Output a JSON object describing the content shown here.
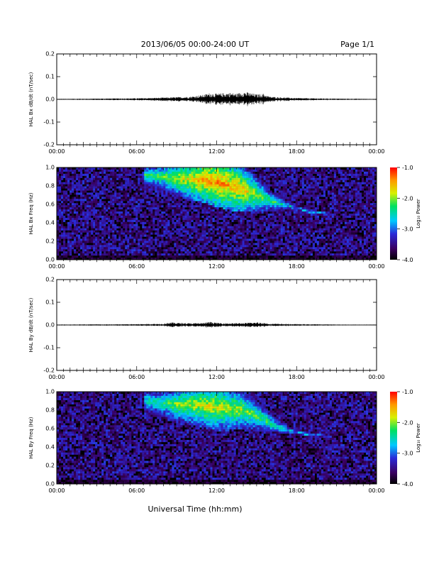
{
  "header": {
    "title": "2013/06/05  00:00-24:00 UT",
    "page": "Page 1/1"
  },
  "xlabel": "Universal Time (hh:mm)",
  "x_ticks": [
    "00:00",
    "06:00",
    "12:00",
    "18:00",
    "00:00"
  ],
  "colorbar": {
    "label": "Log₁₀ Power",
    "ticks": [
      "-1.0",
      "-2.0",
      "-3.0",
      "-4.0"
    ],
    "range": [
      -4.0,
      -1.0
    ]
  },
  "panels": {
    "bx_wave": {
      "ylabel": "HAL Bx dB/dt (nT/sec)",
      "y_ticks": [
        "0.2",
        "0.1",
        "0.0",
        "-0.1",
        "-0.2"
      ]
    },
    "bx_spec": {
      "ylabel": "HAL Bx Freq (Hz)",
      "y_ticks": [
        "1.0",
        "0.8",
        "0.6",
        "0.4",
        "0.2",
        "0.0"
      ]
    },
    "by_wave": {
      "ylabel": "HAL By dB/dt (nT/sec)",
      "y_ticks": [
        "0.2",
        "0.1",
        "0.0",
        "-0.1",
        "-0.2"
      ]
    },
    "by_spec": {
      "ylabel": "HAL By Freq (Hz)",
      "y_ticks": [
        "1.0",
        "0.8",
        "0.6",
        "0.4",
        "0.2",
        "0.0"
      ]
    }
  },
  "chart_data": [
    {
      "type": "line",
      "ylabel": "HAL Bx dB/dt (nT/sec)",
      "xlim_hours": [
        0,
        24
      ],
      "ylim": [
        -0.2,
        0.2
      ],
      "x": [
        0,
        2,
        4,
        6,
        8,
        9,
        10,
        11,
        11.5,
        12,
        13,
        13.5,
        14,
        15,
        15.5,
        16,
        18,
        20,
        22,
        24
      ],
      "amplitude": [
        0.002,
        0.003,
        0.004,
        0.005,
        0.008,
        0.01,
        0.012,
        0.02,
        0.028,
        0.025,
        0.03,
        0.025,
        0.035,
        0.022,
        0.025,
        0.012,
        0.006,
        0.004,
        0.003,
        0.002
      ]
    },
    {
      "type": "heatmap",
      "ylabel": "HAL Bx Freq (Hz)",
      "xlim_hours": [
        0,
        24
      ],
      "ylim": [
        0.0,
        1.0
      ],
      "colorscale_range_log10_power": [
        -4.0,
        -1.0
      ],
      "band": {
        "t_hours": [
          6.5,
          8,
          9,
          10,
          11,
          12,
          13,
          14,
          15,
          16,
          17,
          18,
          19,
          20.5
        ],
        "f_center": [
          0.92,
          0.9,
          0.88,
          0.87,
          0.86,
          0.84,
          0.8,
          0.76,
          0.7,
          0.64,
          0.6,
          0.56,
          0.52,
          0.5
        ],
        "f_width": [
          0.1,
          0.14,
          0.16,
          0.18,
          0.2,
          0.22,
          0.22,
          0.2,
          0.16,
          0.1,
          0.06,
          0.04,
          0.03,
          0.02
        ],
        "log_power": [
          -2.3,
          -2.2,
          -1.9,
          -1.7,
          -1.5,
          -1.4,
          -1.5,
          -1.6,
          -1.9,
          -2.2,
          -2.5,
          -2.8,
          -2.7,
          -2.9
        ]
      }
    },
    {
      "type": "line",
      "ylabel": "HAL By dB/dt (nT/sec)",
      "xlim_hours": [
        0,
        24
      ],
      "ylim": [
        -0.2,
        0.2
      ],
      "x": [
        0,
        2,
        4,
        6,
        8,
        8.5,
        9,
        10,
        11,
        11.5,
        12,
        13,
        14,
        15,
        15.5,
        16,
        18,
        20,
        22,
        24
      ],
      "amplitude": [
        0.002,
        0.003,
        0.003,
        0.004,
        0.006,
        0.012,
        0.01,
        0.008,
        0.009,
        0.014,
        0.01,
        0.008,
        0.009,
        0.012,
        0.01,
        0.006,
        0.004,
        0.003,
        0.002,
        0.002
      ]
    },
    {
      "type": "heatmap",
      "ylabel": "HAL By Freq (Hz)",
      "xlim_hours": [
        0,
        24
      ],
      "ylim": [
        0.0,
        1.0
      ],
      "colorscale_range_log10_power": [
        -4.0,
        -1.0
      ],
      "band": {
        "t_hours": [
          6.5,
          8,
          9,
          10,
          11,
          12,
          13,
          14,
          15,
          16,
          17,
          18,
          19,
          20.5
        ],
        "f_center": [
          0.9,
          0.88,
          0.86,
          0.86,
          0.85,
          0.84,
          0.82,
          0.8,
          0.74,
          0.66,
          0.6,
          0.56,
          0.53,
          0.52
        ],
        "f_width": [
          0.1,
          0.14,
          0.16,
          0.18,
          0.2,
          0.22,
          0.2,
          0.18,
          0.14,
          0.1,
          0.06,
          0.04,
          0.03,
          0.02
        ],
        "log_power": [
          -2.4,
          -2.3,
          -2.0,
          -1.9,
          -1.8,
          -1.8,
          -1.9,
          -2.0,
          -2.1,
          -2.3,
          -2.5,
          -2.8,
          -2.7,
          -2.9
        ]
      }
    }
  ]
}
